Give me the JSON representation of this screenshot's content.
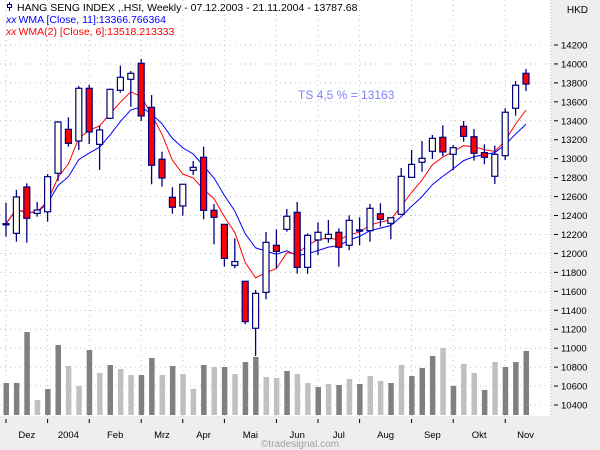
{
  "header": {
    "series_icon": "candlestick-icon",
    "main_line": "HANG SENG INDEX  ,.HSI, Weekly - 07.12.2003 - 21.11.2004 - 13787.68",
    "ma1_icon": "xx",
    "ma1_line": "WMA [Close, 11]:13366.766364",
    "ma2_icon": "xx",
    "ma2_line": "WMA(2) [Close, 6]:13518.213333"
  },
  "currency": "HKD",
  "annotation": "TS 4,5 % = 13163",
  "footer": "©tradesignal.com",
  "colors": {
    "ma11": "#0000ff",
    "ma6": "#ff0000",
    "candle_border": "#000080",
    "up_fill": "#ffffee",
    "down_fill": "#ff0000",
    "annotation": "#8080ff",
    "volume_dark": "#808080",
    "volume_light": "#c0c0c0",
    "axis_bg": "#eeeeee"
  },
  "chart_data": {
    "type": "candlestick",
    "title": "HANG SENG INDEX ,.HSI, Weekly",
    "ylabel": "HKD",
    "ylim": [
      10400,
      14200
    ],
    "ytick_step": 200,
    "yticks": [
      "14200",
      "14000",
      "13800",
      "13600",
      "13400",
      "13200",
      "13000",
      "12800",
      "12600",
      "12400",
      "12200",
      "12000",
      "11800",
      "11600",
      "11400",
      "11200",
      "11000",
      "10800",
      "10600",
      "10400"
    ],
    "grid": true,
    "months": [
      {
        "label": "Dez",
        "tick_week": 0
      },
      {
        "label": "2004",
        "tick_week": 4
      },
      {
        "label": "Feb",
        "tick_week": 8
      },
      {
        "label": "Mrz",
        "tick_week": 13
      },
      {
        "label": "Apr",
        "tick_week": 17
      },
      {
        "label": "Mai",
        "tick_week": 21
      },
      {
        "label": "Jun",
        "tick_week": 26
      },
      {
        "label": "Jul",
        "tick_week": 30
      },
      {
        "label": "Aug",
        "tick_week": 34
      },
      {
        "label": "Sep",
        "tick_week": 39
      },
      {
        "label": "Okt",
        "tick_week": 43
      },
      {
        "label": "Nov",
        "tick_week": 48
      }
    ],
    "ohlc": [
      [
        12310,
        12535,
        12177,
        12314
      ],
      [
        12212,
        12670,
        12124,
        12596
      ],
      [
        12701,
        12740,
        12113,
        12371
      ],
      [
        12423,
        12543,
        12388,
        12458
      ],
      [
        12440,
        12838,
        12335,
        12810
      ],
      [
        12846,
        13398,
        12764,
        13387
      ],
      [
        13310,
        13437,
        13127,
        13162
      ],
      [
        13187,
        13767,
        13092,
        13743
      ],
      [
        13743,
        13781,
        13155,
        13282
      ],
      [
        13151,
        13345,
        12881,
        13303
      ],
      [
        13426,
        13740,
        13420,
        13732
      ],
      [
        13722,
        13982,
        13697,
        13859
      ],
      [
        13838,
        13926,
        13549,
        13901
      ],
      [
        14007,
        14052,
        13398,
        13451
      ],
      [
        13542,
        13672,
        12730,
        12930
      ],
      [
        12994,
        13074,
        12704,
        12796
      ],
      [
        12592,
        12698,
        12419,
        12487
      ],
      [
        12501,
        12730,
        12399,
        12730
      ],
      [
        12877,
        12975,
        12828,
        12909
      ],
      [
        13015,
        13127,
        12360,
        12455
      ],
      [
        12455,
        12522,
        12096,
        12381
      ],
      [
        12307,
        12307,
        11860,
        11948
      ],
      [
        11874,
        12159,
        11843,
        11914
      ],
      [
        11706,
        11706,
        11252,
        11280
      ],
      [
        11210,
        11614,
        10917,
        11579
      ],
      [
        11589,
        12226,
        11516,
        12117
      ],
      [
        12086,
        12254,
        11843,
        12022
      ],
      [
        12254,
        12469,
        12229,
        12392
      ],
      [
        12434,
        12543,
        11786,
        11853
      ],
      [
        11853,
        12212,
        11786,
        12191
      ],
      [
        12142,
        12328,
        11983,
        12223
      ],
      [
        12156,
        12353,
        12114,
        12202
      ],
      [
        12223,
        12265,
        11860,
        12065
      ],
      [
        12086,
        12402,
        12033,
        12349
      ],
      [
        12240,
        12381,
        12086,
        12248
      ],
      [
        12240,
        12522,
        12124,
        12476
      ],
      [
        12419,
        12529,
        12282,
        12360
      ],
      [
        12318,
        12377,
        12149,
        12377
      ],
      [
        12413,
        12902,
        12413,
        12814
      ],
      [
        12803,
        13092,
        12803,
        12940
      ],
      [
        12962,
        13187,
        12863,
        13004
      ],
      [
        13078,
        13250,
        12997,
        13215
      ],
      [
        13226,
        13352,
        13028,
        13071
      ],
      [
        13046,
        13144,
        12881,
        13116
      ],
      [
        13342,
        13398,
        13180,
        13236
      ],
      [
        13232,
        13313,
        12979,
        13057
      ],
      [
        13064,
        13152,
        12941,
        13015
      ],
      [
        12814,
        13137,
        12733,
        13046
      ],
      [
        13032,
        13532,
        12986,
        13490
      ],
      [
        13532,
        13820,
        13454,
        13775
      ],
      [
        13901,
        13947,
        13714,
        13787.68
      ]
    ],
    "volume_relative": [
      32,
      32,
      83,
      15,
      26,
      70,
      49,
      29,
      65,
      42,
      50,
      46,
      40,
      40,
      57,
      40,
      49,
      41,
      26,
      50,
      48,
      48,
      41,
      53,
      58,
      38,
      37,
      44,
      41,
      32,
      28,
      31,
      30,
      36,
      31,
      39,
      34,
      32,
      50,
      39,
      47,
      59,
      67,
      29,
      51,
      42,
      25,
      53,
      48,
      53,
      64
    ],
    "volume_shade": [
      "d",
      "d",
      "d",
      "l",
      "d",
      "d",
      "l",
      "l",
      "d",
      "l",
      "d",
      "l",
      "l",
      "d",
      "d",
      "l",
      "d",
      "l",
      "l",
      "d",
      "l",
      "d",
      "l",
      "d",
      "d",
      "l",
      "l",
      "d",
      "l",
      "l",
      "d",
      "l",
      "d",
      "l",
      "d",
      "l",
      "l",
      "d",
      "l",
      "d",
      "d",
      "d",
      "l",
      "d",
      "l",
      "l",
      "d",
      "l",
      "d",
      "d",
      "d"
    ],
    "series": [
      {
        "name": "WMA [Close, 11]",
        "period": 11,
        "last": 13366.766364
      },
      {
        "name": "WMA(2) [Close, 6]",
        "period": 6,
        "last": 13518.213333
      }
    ]
  }
}
